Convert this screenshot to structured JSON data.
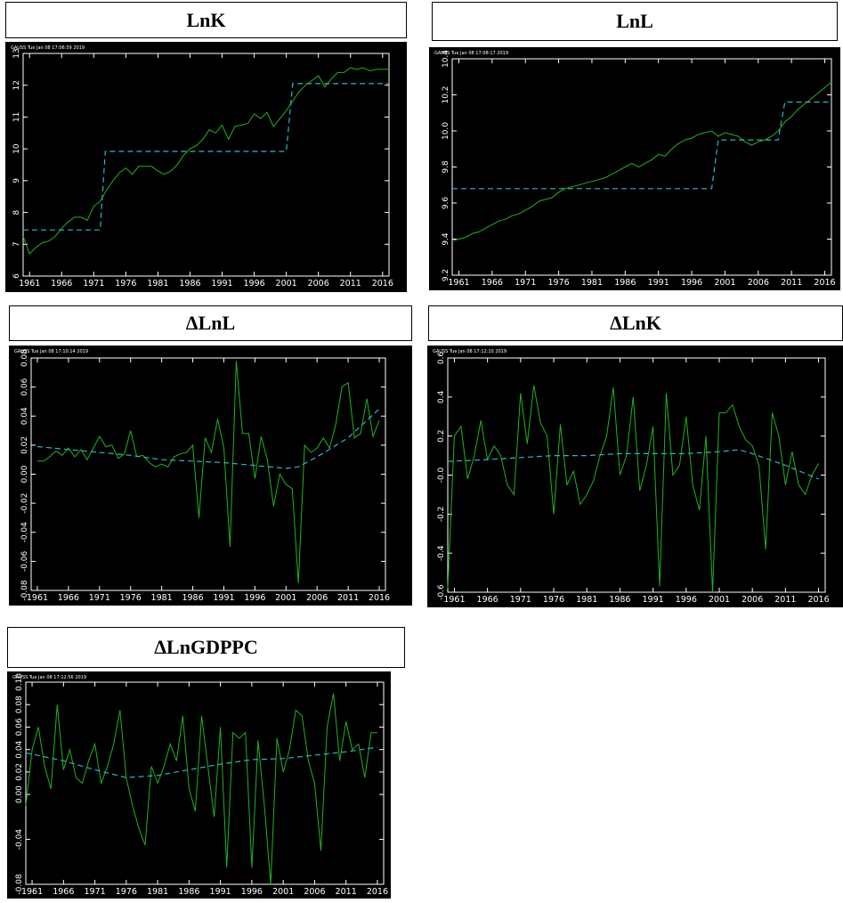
{
  "colors": {
    "background": "#000000",
    "axis": "#ffffff",
    "actual": "#1fb31f",
    "fitted": "#29b8c8"
  },
  "chart_data": [
    {
      "type": "line",
      "title": "LnK",
      "header": "GAUSS    Tue Jan 08 17:06:59 2019",
      "x_range": [
        1960,
        2017
      ],
      "xticks": [
        1961,
        1966,
        1971,
        1976,
        1981,
        1986,
        1991,
        1996,
        2001,
        2006,
        2011,
        2016
      ],
      "ylim": [
        6,
        13
      ],
      "yticks": [
        6,
        7,
        8,
        9,
        10,
        11,
        12,
        13
      ],
      "ytick_labels": [
        "6",
        "7",
        "8",
        "9",
        "10",
        "11",
        "12",
        "13"
      ],
      "series": [
        {
          "style": "solid",
          "x": [
            1960,
            1961,
            1962,
            1963,
            1964,
            1965,
            1966,
            1967,
            1968,
            1969,
            1970,
            1971,
            1972,
            1973,
            1974,
            1975,
            1976,
            1977,
            1978,
            1979,
            1980,
            1981,
            1982,
            1983,
            1984,
            1985,
            1986,
            1987,
            1988,
            1989,
            1990,
            1991,
            1992,
            1993,
            1994,
            1995,
            1996,
            1997,
            1998,
            1999,
            2000,
            2001,
            2002,
            2003,
            2004,
            2005,
            2006,
            2007,
            2008,
            2009,
            2010,
            2011,
            2012,
            2013,
            2014,
            2015,
            2016,
            2017
          ],
          "y": [
            7.25,
            6.7,
            6.9,
            7.05,
            7.1,
            7.25,
            7.5,
            7.7,
            7.85,
            7.85,
            7.75,
            8.2,
            8.35,
            8.7,
            9.0,
            9.25,
            9.4,
            9.2,
            9.45,
            9.45,
            9.45,
            9.3,
            9.2,
            9.3,
            9.5,
            9.8,
            10.0,
            10.1,
            10.3,
            10.6,
            10.5,
            10.75,
            10.3,
            10.7,
            10.75,
            10.8,
            11.1,
            10.95,
            11.15,
            10.7,
            10.95,
            11.2,
            11.5,
            11.8,
            12.0,
            12.15,
            12.3,
            11.95,
            12.2,
            12.4,
            12.4,
            12.55,
            12.5,
            12.55,
            12.45,
            12.5,
            12.5,
            12.5
          ]
        },
        {
          "style": "dashed",
          "x": [
            1960,
            1972,
            1972.8,
            2001,
            2002,
            2017
          ],
          "y": [
            7.45,
            7.45,
            9.92,
            9.92,
            12.05,
            12.05
          ]
        }
      ]
    },
    {
      "type": "line",
      "title": "LnL",
      "header": "GAUSS    Tue Jan 08 17:08:17 2019",
      "x_range": [
        1960,
        2017
      ],
      "xticks": [
        1961,
        1966,
        1971,
        1976,
        1981,
        1986,
        1991,
        1996,
        2001,
        2006,
        2011,
        2016
      ],
      "ylim": [
        9.2,
        10.4
      ],
      "yticks": [
        9.2,
        9.4,
        9.6,
        9.8,
        10.0,
        10.2,
        10.4
      ],
      "ytick_labels": [
        "9.2",
        "9.4",
        "9.6",
        "9.8",
        "10.0",
        "10.2",
        "10.4"
      ],
      "series": [
        {
          "style": "solid",
          "x": [
            1960,
            1961,
            1962,
            1963,
            1964,
            1965,
            1966,
            1967,
            1968,
            1969,
            1970,
            1971,
            1972,
            1973,
            1974,
            1975,
            1976,
            1977,
            1978,
            1979,
            1980,
            1981,
            1982,
            1983,
            1984,
            1985,
            1986,
            1987,
            1988,
            1989,
            1990,
            1991,
            1992,
            1993,
            1994,
            1995,
            1996,
            1997,
            1998,
            1999,
            2000,
            2001,
            2002,
            2003,
            2004,
            2005,
            2006,
            2007,
            2008,
            2009,
            2010,
            2011,
            2012,
            2013,
            2014,
            2015,
            2016,
            2017
          ],
          "y": [
            9.39,
            9.4,
            9.41,
            9.43,
            9.44,
            9.46,
            9.48,
            9.5,
            9.51,
            9.53,
            9.54,
            9.56,
            9.58,
            9.61,
            9.62,
            9.63,
            9.66,
            9.68,
            9.69,
            9.7,
            9.71,
            9.72,
            9.73,
            9.74,
            9.76,
            9.78,
            9.8,
            9.82,
            9.8,
            9.82,
            9.84,
            9.87,
            9.86,
            9.9,
            9.93,
            9.95,
            9.96,
            9.98,
            9.99,
            10.0,
            9.97,
            9.99,
            9.98,
            9.97,
            9.94,
            9.92,
            9.94,
            9.95,
            9.97,
            10.0,
            10.05,
            10.08,
            10.12,
            10.15,
            10.18,
            10.21,
            10.24,
            10.27
          ]
        },
        {
          "style": "dashed",
          "x": [
            1960,
            1999,
            2000,
            2009,
            2010,
            2017
          ],
          "y": [
            9.68,
            9.68,
            9.95,
            9.95,
            10.16,
            10.16
          ]
        }
      ]
    },
    {
      "type": "line",
      "title": "ΔLnL",
      "header": "GAUSS    Tue Jan 08 17:10:14 2019",
      "x_range": [
        1960,
        2017
      ],
      "xticks": [
        1961,
        1966,
        1971,
        1976,
        1981,
        1986,
        1991,
        1996,
        2001,
        2006,
        2011,
        2016
      ],
      "ylim": [
        -0.08,
        0.08
      ],
      "yticks": [
        -0.08,
        -0.06,
        -0.04,
        -0.02,
        0.0,
        0.02,
        0.04,
        0.06,
        0.08
      ],
      "ytick_labels": [
        "-0.08",
        "-0.06",
        "-0.04",
        "-0.02",
        "0.00",
        "0.02",
        "0.04",
        "0.06",
        "0.08"
      ],
      "series": [
        {
          "style": "solid",
          "x": [
            1961,
            1962,
            1963,
            1964,
            1965,
            1966,
            1967,
            1968,
            1969,
            1970,
            1971,
            1972,
            1973,
            1974,
            1975,
            1976,
            1977,
            1978,
            1979,
            1980,
            1981,
            1982,
            1983,
            1984,
            1985,
            1986,
            1987,
            1988,
            1989,
            1990,
            1991,
            1992,
            1993,
            1994,
            1995,
            1996,
            1997,
            1998,
            1999,
            2000,
            2001,
            2002,
            2003,
            2004,
            2005,
            2006,
            2007,
            2008,
            2009,
            2010,
            2011,
            2012,
            2013,
            2014,
            2015,
            2016
          ],
          "y": [
            0.009,
            0.009,
            0.012,
            0.016,
            0.013,
            0.018,
            0.012,
            0.017,
            0.01,
            0.018,
            0.026,
            0.019,
            0.02,
            0.011,
            0.014,
            0.03,
            0.012,
            0.013,
            0.008,
            0.005,
            0.007,
            0.005,
            0.012,
            0.014,
            0.015,
            0.02,
            -0.03,
            0.025,
            0.015,
            0.038,
            0.018,
            -0.05,
            0.078,
            0.028,
            0.028,
            -0.003,
            0.026,
            0.01,
            -0.022,
            0.0,
            -0.007,
            -0.01,
            -0.075,
            0.02,
            0.015,
            0.018,
            0.025,
            0.018,
            0.034,
            0.06,
            0.063,
            0.025,
            0.028,
            0.052,
            0.026,
            0.037
          ]
        },
        {
          "style": "dashed",
          "x": [
            1961,
            1966,
            1971,
            1976,
            1981,
            1986,
            1991,
            1996,
            2001,
            2003,
            2006,
            2011,
            2016
          ],
          "y": [
            0.019,
            0.017,
            0.015,
            0.013,
            0.01,
            0.009,
            0.008,
            0.006,
            0.004,
            0.005,
            0.012,
            0.025,
            0.045
          ]
        }
      ]
    },
    {
      "type": "line",
      "title": "ΔLnK",
      "header": "GAUSS    Tue Jan 08 17:12:10 2019",
      "x_range": [
        1960,
        2017
      ],
      "xticks": [
        1961,
        1966,
        1971,
        1976,
        1981,
        1986,
        1991,
        1996,
        2001,
        2006,
        2011,
        2016
      ],
      "ylim": [
        -0.6,
        0.6
      ],
      "yticks": [
        -0.6,
        -0.4,
        -0.2,
        0.0,
        0.2,
        0.4,
        0.6
      ],
      "ytick_labels": [
        "-0.6",
        "-0.4",
        "-0.2",
        "-0.0",
        "0.2",
        "0.4",
        "0.6"
      ],
      "series": [
        {
          "style": "solid",
          "x": [
            1960,
            1961,
            1962,
            1963,
            1964,
            1965,
            1966,
            1967,
            1968,
            1969,
            1970,
            1971,
            1972,
            1973,
            1974,
            1975,
            1976,
            1977,
            1978,
            1979,
            1980,
            1981,
            1982,
            1983,
            1984,
            1985,
            1986,
            1987,
            1988,
            1989,
            1990,
            1991,
            1992,
            1993,
            1994,
            1995,
            1996,
            1997,
            1998,
            1999,
            2000,
            2001,
            2002,
            2003,
            2004,
            2005,
            2006,
            2007,
            2008,
            2009,
            2010,
            2011,
            2012,
            2013,
            2014,
            2015,
            2016
          ],
          "y": [
            -0.58,
            0.2,
            0.25,
            -0.02,
            0.1,
            0.28,
            0.08,
            0.15,
            0.1,
            -0.05,
            -0.1,
            0.42,
            0.16,
            0.46,
            0.27,
            0.2,
            -0.2,
            0.26,
            -0.05,
            0.02,
            -0.15,
            -0.1,
            -0.03,
            0.1,
            0.2,
            0.45,
            0.0,
            0.1,
            0.4,
            -0.08,
            0.05,
            0.25,
            -0.57,
            0.42,
            0.0,
            0.05,
            0.3,
            -0.05,
            -0.18,
            0.2,
            -0.6,
            0.32,
            0.32,
            0.36,
            0.25,
            0.18,
            0.15,
            0.05,
            -0.38,
            0.32,
            0.2,
            -0.05,
            0.12,
            -0.05,
            -0.1,
            0.0,
            0.06
          ]
        },
        {
          "style": "dashed",
          "x": [
            1960,
            1966,
            1971,
            1976,
            1981,
            1986,
            1991,
            1996,
            2001,
            2004,
            2006,
            2011,
            2016
          ],
          "y": [
            0.07,
            0.08,
            0.09,
            0.1,
            0.1,
            0.11,
            0.11,
            0.11,
            0.12,
            0.13,
            0.11,
            0.05,
            -0.02
          ]
        }
      ]
    },
    {
      "type": "line",
      "title": "ΔLnGDPPC",
      "header": "GAUSS    Tue Jan 08 17:12:56 2019",
      "x_range": [
        1960,
        2017
      ],
      "xticks": [
        1961,
        1966,
        1971,
        1976,
        1981,
        1986,
        1991,
        1996,
        2001,
        2006,
        2011,
        2016
      ],
      "ylim": [
        -0.08,
        0.1
      ],
      "yticks": [
        -0.08,
        -0.04,
        0.0,
        0.02,
        0.04,
        0.06,
        0.08,
        0.1
      ],
      "ytick_labels": [
        "-0.08",
        "-0.04",
        "0.00",
        "0.02",
        "0.04",
        "0.06",
        "0.08",
        "0.10"
      ],
      "series": [
        {
          "style": "solid",
          "x": [
            1960,
            1961,
            1962,
            1963,
            1964,
            1965,
            1966,
            1967,
            1968,
            1969,
            1970,
            1971,
            1972,
            1973,
            1974,
            1975,
            1976,
            1977,
            1978,
            1979,
            1980,
            1981,
            1982,
            1983,
            1984,
            1985,
            1986,
            1987,
            1988,
            1989,
            1990,
            1991,
            1992,
            1993,
            1994,
            1995,
            1996,
            1997,
            1998,
            1999,
            2000,
            2001,
            2002,
            2003,
            2004,
            2005,
            2006,
            2007,
            2008,
            2009,
            2010,
            2011,
            2012,
            2013,
            2014,
            2015,
            2016
          ],
          "y": [
            -0.01,
            0.04,
            0.06,
            0.025,
            0.005,
            0.08,
            0.022,
            0.04,
            0.015,
            0.01,
            0.03,
            0.045,
            0.01,
            0.025,
            0.045,
            0.075,
            0.015,
            -0.01,
            -0.03,
            -0.045,
            0.025,
            0.01,
            0.025,
            0.045,
            0.03,
            0.07,
            0.005,
            -0.015,
            0.07,
            0.025,
            -0.02,
            0.06,
            -0.065,
            0.055,
            0.05,
            0.055,
            -0.065,
            0.048,
            -0.01,
            -0.08,
            0.05,
            0.02,
            0.04,
            0.075,
            0.07,
            0.03,
            0.01,
            -0.05,
            0.06,
            0.09,
            0.03,
            0.065,
            0.04,
            0.045,
            0.015,
            0.055,
            0.055
          ]
        },
        {
          "style": "dashed",
          "x": [
            1960,
            1966,
            1971,
            1976,
            1981,
            1986,
            1991,
            1996,
            2001,
            2006,
            2011,
            2016
          ],
          "y": [
            0.037,
            0.03,
            0.022,
            0.015,
            0.017,
            0.022,
            0.027,
            0.031,
            0.032,
            0.035,
            0.038,
            0.042
          ]
        }
      ]
    }
  ]
}
